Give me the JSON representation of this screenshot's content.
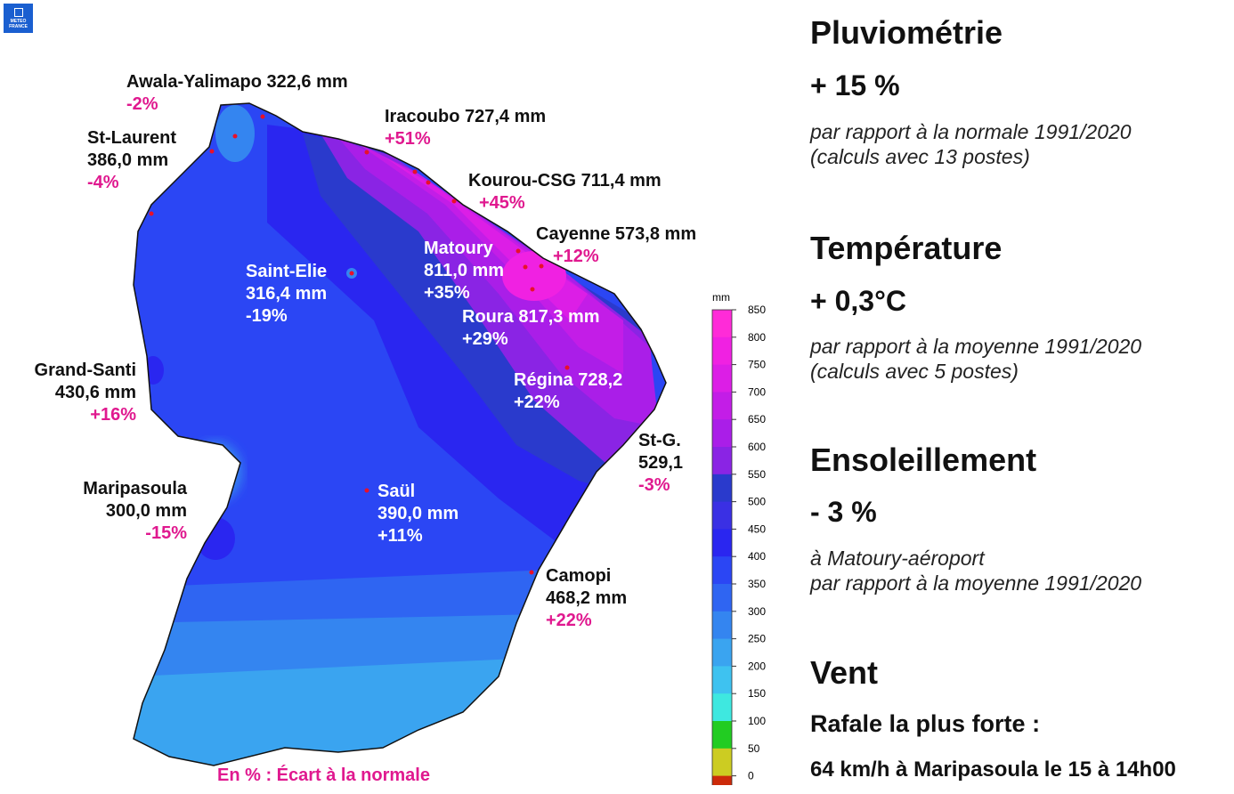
{
  "legend": {
    "unit": "mm",
    "ticks": [
      "850",
      "800",
      "750",
      "700",
      "650",
      "600",
      "550",
      "500",
      "450",
      "400",
      "350",
      "300",
      "250",
      "200",
      "150",
      "100",
      "50",
      "0"
    ],
    "colors": [
      "#ff2bd8",
      "#f021e2",
      "#dc1ee6",
      "#c31de7",
      "#aa1ee8",
      "#8a24e4",
      "#2a3acc",
      "#3a30e4",
      "#2a26f0",
      "#2b46f4",
      "#2f65f2",
      "#3485f0",
      "#3aa4f0",
      "#3ec2f0",
      "#3ee8e0",
      "#22cc22",
      "#cccc22",
      "#cc2a0a"
    ]
  },
  "stations": {
    "awala": {
      "name": "Awala-Yalimapo 322,6 mm",
      "pct": "-2%"
    },
    "stlaurent": {
      "name": "St-Laurent",
      "amount": "386,0 mm",
      "pct": "-4%"
    },
    "iracoubo": {
      "name": "Iracoubo 727,4 mm",
      "pct": "+51%"
    },
    "kourou": {
      "name": "Kourou-CSG 711,4 mm",
      "pct": "+45%"
    },
    "cayenne": {
      "name": "Cayenne 573,8 mm",
      "pct": "+12%"
    },
    "matoury": {
      "name": "Matoury",
      "amount": "811,0 mm",
      "pct": "+35%"
    },
    "saintelie": {
      "name": "Saint-Elie",
      "amount": "316,4 mm",
      "pct": "-19%"
    },
    "roura": {
      "name": "Roura 817,3 mm",
      "pct": "+29%"
    },
    "grandsanti": {
      "name": "Grand-Santi",
      "amount": "430,6 mm",
      "pct": "+16%"
    },
    "regina": {
      "name": "Régina 728,2",
      "pct": "+22%"
    },
    "stg": {
      "name": "St-G.",
      "amount": "529,1",
      "pct": "-3%"
    },
    "maripasoula": {
      "name": "Maripasoula",
      "amount": "300,0 mm",
      "pct": "-15%"
    },
    "saul": {
      "name": "Saül",
      "amount": "390,0 mm",
      "pct": "+11%"
    },
    "camopi": {
      "name": "Camopi",
      "amount": "468,2 mm",
      "pct": "+22%"
    }
  },
  "map_note": "En % : Écart à la normale",
  "logo": {
    "line1": "METEO",
    "line2": "FRANCE"
  },
  "panel": {
    "rain": {
      "title": "Pluviométrie",
      "value": "+ 15 %",
      "note1": "par rapport à la normale 1991/2020",
      "note2": "(calculs avec 13 postes)"
    },
    "temp": {
      "title": "Température",
      "value": "+ 0,3°C",
      "note1": "par rapport à la moyenne 1991/2020",
      "note2": "(calculs avec 5 postes)"
    },
    "sun": {
      "title": "Ensoleillement",
      "value": "- 3 %",
      "note1": "à Matoury-aéroport",
      "note2": "par rapport à la moyenne 1991/2020"
    },
    "wind": {
      "title": "Vent",
      "gust_label": "Rafale la plus forte :",
      "gust_value": "64 km/h à Maripasoula le 15 à 14h00"
    }
  }
}
